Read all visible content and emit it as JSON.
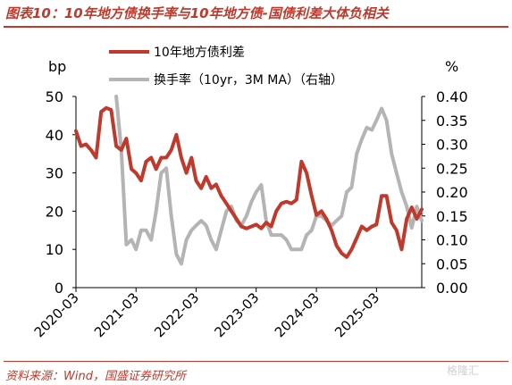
{
  "header": {
    "title": "图表10：10年地方债换手率与10年地方债-国债利差大体负相关"
  },
  "footer": {
    "source": "资料来源：Wind，国盛证券研究所",
    "watermark": "格隆汇"
  },
  "colors": {
    "accent": "#c0392b",
    "spread_series": "#c0392b",
    "turnover_series": "#b4b4b4"
  },
  "chart_data": {
    "type": "line",
    "left_axis_unit": "bp",
    "right_axis_unit": "%",
    "y_left_range": [
      0,
      50
    ],
    "y_left_ticks": [
      "0",
      "10",
      "20",
      "30",
      "40",
      "50"
    ],
    "y_right_range": [
      0,
      0.4
    ],
    "y_right_ticks": [
      "0.00",
      "0.05",
      "0.10",
      "0.15",
      "0.20",
      "0.25",
      "0.30",
      "0.35",
      "0.40"
    ],
    "x_tick_labels": [
      "2020-03",
      "2021-03",
      "2022-03",
      "2023-03",
      "2024-03",
      "2025-03"
    ],
    "grid": false,
    "legend_position": "top-left",
    "series": [
      {
        "name": "10年地方债利差",
        "axis": "left",
        "color": "#c0392b",
        "values": [
          [
            "2020-03-01",
            41
          ],
          [
            "2020-04-01",
            37
          ],
          [
            "2020-05-01",
            37.5
          ],
          [
            "2020-06-01",
            36
          ],
          [
            "2020-07-01",
            34
          ],
          [
            "2020-08-01",
            46
          ],
          [
            "2020-09-01",
            47
          ],
          [
            "2020-10-01",
            46.5
          ],
          [
            "2020-11-01",
            37
          ],
          [
            "2020-12-01",
            36
          ],
          [
            "2021-01-01",
            39
          ],
          [
            "2021-02-01",
            31
          ],
          [
            "2021-03-01",
            30
          ],
          [
            "2021-04-01",
            28
          ],
          [
            "2021-05-01",
            33
          ],
          [
            "2021-06-01",
            34
          ],
          [
            "2021-07-01",
            31
          ],
          [
            "2021-08-01",
            34
          ],
          [
            "2021-09-01",
            34
          ],
          [
            "2021-10-01",
            36
          ],
          [
            "2021-11-01",
            40
          ],
          [
            "2021-12-01",
            34
          ],
          [
            "2022-01-01",
            30
          ],
          [
            "2022-02-01",
            34
          ],
          [
            "2022-03-01",
            28
          ],
          [
            "2022-04-01",
            26
          ],
          [
            "2022-05-01",
            29
          ],
          [
            "2022-06-01",
            26
          ],
          [
            "2022-07-01",
            27
          ],
          [
            "2022-08-01",
            24
          ],
          [
            "2022-09-01",
            22
          ],
          [
            "2022-10-01",
            20
          ],
          [
            "2022-11-01",
            18
          ],
          [
            "2022-12-01",
            16
          ],
          [
            "2023-01-01",
            15.5
          ],
          [
            "2023-02-01",
            16
          ],
          [
            "2023-03-01",
            16.5
          ],
          [
            "2023-04-01",
            15.5
          ],
          [
            "2023-05-01",
            17
          ],
          [
            "2023-06-01",
            16
          ],
          [
            "2023-07-01",
            20
          ],
          [
            "2023-08-01",
            22
          ],
          [
            "2023-09-01",
            22.5
          ],
          [
            "2023-10-01",
            22
          ],
          [
            "2023-11-01",
            23
          ],
          [
            "2023-12-01",
            33
          ],
          [
            "2024-01-01",
            30
          ],
          [
            "2024-02-01",
            24
          ],
          [
            "2024-03-01",
            19
          ],
          [
            "2024-04-01",
            20
          ],
          [
            "2024-05-01",
            18
          ],
          [
            "2024-06-01",
            15
          ],
          [
            "2024-07-01",
            11
          ],
          [
            "2024-08-01",
            9
          ],
          [
            "2024-09-01",
            8
          ],
          [
            "2024-10-01",
            10
          ],
          [
            "2024-11-01",
            13
          ],
          [
            "2024-12-01",
            16
          ],
          [
            "2025-01-01",
            15
          ],
          [
            "2025-02-01",
            16
          ],
          [
            "2025-03-01",
            16.5
          ],
          [
            "2025-04-01",
            24
          ],
          [
            "2025-05-01",
            24
          ],
          [
            "2025-06-01",
            17
          ],
          [
            "2025-07-01",
            15
          ],
          [
            "2025-08-01",
            10
          ],
          [
            "2025-09-01",
            18
          ],
          [
            "2025-10-01",
            21
          ],
          [
            "2025-11-01",
            18
          ],
          [
            "2025-12-01",
            20.5
          ]
        ]
      },
      {
        "name": "换手率（10yr，3M MA）（右轴）",
        "axis": "right",
        "color": "#b4b4b4",
        "values": [
          [
            "2020-11-01",
            0.4
          ],
          [
            "2020-12-01",
            0.29
          ],
          [
            "2021-01-01",
            0.09
          ],
          [
            "2021-02-01",
            0.1
          ],
          [
            "2021-03-01",
            0.08
          ],
          [
            "2021-04-01",
            0.12
          ],
          [
            "2021-05-01",
            0.12
          ],
          [
            "2021-06-01",
            0.1
          ],
          [
            "2021-07-01",
            0.16
          ],
          [
            "2021-08-01",
            0.24
          ],
          [
            "2021-09-01",
            0.25
          ],
          [
            "2021-10-01",
            0.15
          ],
          [
            "2021-11-01",
            0.07
          ],
          [
            "2021-12-01",
            0.05
          ],
          [
            "2022-01-01",
            0.1
          ],
          [
            "2022-02-01",
            0.12
          ],
          [
            "2022-03-01",
            0.13
          ],
          [
            "2022-04-01",
            0.14
          ],
          [
            "2022-05-01",
            0.13
          ],
          [
            "2022-06-01",
            0.1
          ],
          [
            "2022-07-01",
            0.08
          ],
          [
            "2022-08-01",
            0.12
          ],
          [
            "2022-09-01",
            0.16
          ],
          [
            "2022-10-01",
            0.17
          ],
          [
            "2022-11-01",
            0.14
          ],
          [
            "2022-12-01",
            0.13
          ],
          [
            "2023-01-01",
            0.15
          ],
          [
            "2023-02-01",
            0.18
          ],
          [
            "2023-03-01",
            0.2
          ],
          [
            "2023-04-01",
            0.215
          ],
          [
            "2023-05-01",
            0.14
          ],
          [
            "2023-06-01",
            0.11
          ],
          [
            "2023-07-01",
            0.11
          ],
          [
            "2023-08-01",
            0.11
          ],
          [
            "2023-09-01",
            0.1
          ],
          [
            "2023-10-01",
            0.08
          ],
          [
            "2023-11-01",
            0.08
          ],
          [
            "2023-12-01",
            0.08
          ],
          [
            "2024-01-01",
            0.11
          ],
          [
            "2024-02-01",
            0.12
          ],
          [
            "2024-03-01",
            0.15
          ],
          [
            "2024-04-01",
            0.15
          ],
          [
            "2024-05-01",
            0.14
          ],
          [
            "2024-06-01",
            0.13
          ],
          [
            "2024-07-01",
            0.14
          ],
          [
            "2024-08-01",
            0.15
          ],
          [
            "2024-09-01",
            0.2
          ],
          [
            "2024-10-01",
            0.21
          ],
          [
            "2024-11-01",
            0.28
          ],
          [
            "2024-12-01",
            0.31
          ],
          [
            "2025-01-01",
            0.335
          ],
          [
            "2025-02-01",
            0.33
          ],
          [
            "2025-03-01",
            0.35
          ],
          [
            "2025-04-01",
            0.375
          ],
          [
            "2025-05-01",
            0.35
          ],
          [
            "2025-06-01",
            0.28
          ],
          [
            "2025-07-01",
            0.24
          ],
          [
            "2025-08-01",
            0.2
          ],
          [
            "2025-09-01",
            0.17
          ],
          [
            "2025-10-01",
            0.125
          ],
          [
            "2025-11-01",
            0.17
          ],
          [
            "2025-12-01",
            0.14
          ]
        ]
      }
    ]
  }
}
